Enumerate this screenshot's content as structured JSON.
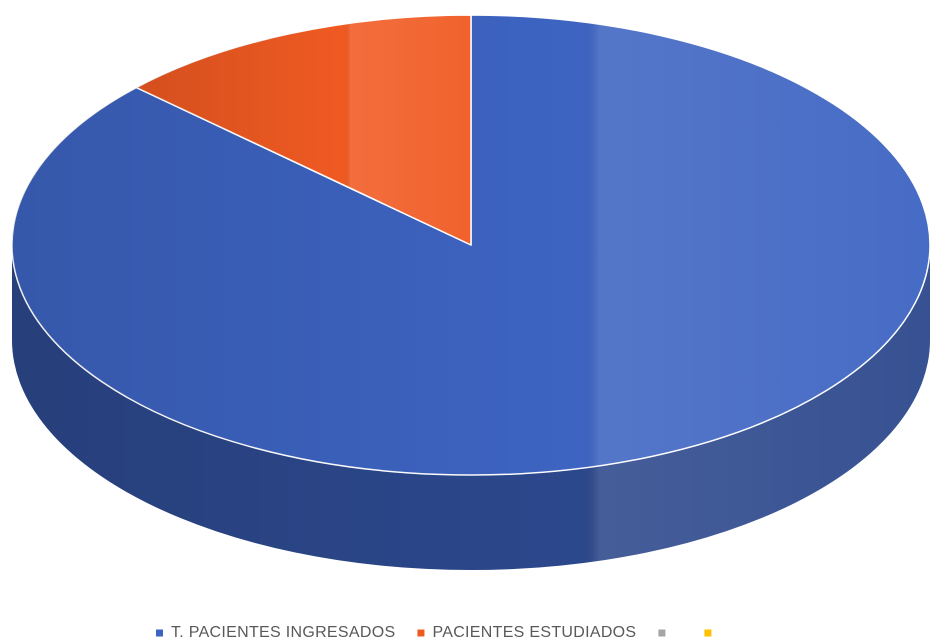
{
  "chart_data": {
    "type": "pie",
    "categories": [
      "T. PACIENTES INGRESADOS",
      "PACIENTES ESTUDIADOS",
      null,
      null
    ],
    "values": [
      87,
      13,
      0,
      0
    ],
    "colors": [
      "#3d64c2",
      "#f05a22",
      "#a5a5a5",
      "#ffc000"
    ],
    "legend": "bottom"
  }
}
